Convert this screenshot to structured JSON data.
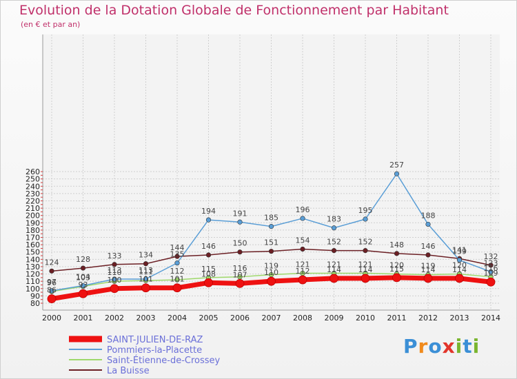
{
  "header": {
    "title": "Evolution de la Dotation Globale de Fonctionnement par Habitant",
    "subtitle": "(en € et par an)"
  },
  "brand": {
    "logo_text": "Proxiti",
    "logo_colors": [
      "#3b8fd6",
      "#f08a1c",
      "#3b8fd6",
      "#e2352b",
      "#7ab52f",
      "#3b8fd6",
      "#7ab52f"
    ]
  },
  "colors": {
    "accent": "#c0306a",
    "legend_text": "#6a6fd8"
  },
  "chart_data": {
    "type": "line",
    "categories": [
      "2000",
      "2001",
      "2002",
      "2003",
      "2004",
      "2005",
      "2006",
      "2007",
      "2008",
      "2009",
      "2010",
      "2011",
      "2012",
      "2013",
      "2014"
    ],
    "ylim": [
      80,
      260
    ],
    "yticks": [
      80,
      90,
      100,
      110,
      120,
      130,
      140,
      150,
      160,
      170,
      180,
      190,
      200,
      210,
      220,
      230,
      240,
      250,
      260
    ],
    "xlabel": "",
    "ylabel": "",
    "grid": true,
    "legend_position": "bottom-left",
    "series": [
      {
        "name": "La Buisse",
        "color": "#6b1f24",
        "values": [
          124,
          128,
          133,
          134,
          144,
          146,
          150,
          151,
          154,
          152,
          152,
          148,
          146,
          141,
          132
        ]
      },
      {
        "name": "Saint-Étienne-de-Crossey",
        "color": "#9ed86a",
        "values": [
          96,
          103,
          110,
          111,
          112,
          115,
          116,
          119,
          121,
          121,
          121,
          120,
          119,
          120,
          116
        ]
      },
      {
        "name": "Pommiers-la-Placette",
        "color": "#5a9ed6",
        "values": [
          97,
          104,
          113,
          113,
          135,
          194,
          191,
          185,
          196,
          183,
          195,
          257,
          188,
          139,
          123
        ]
      },
      {
        "name": "SAINT-JULIEN-DE-RAZ",
        "color": "#ee1111",
        "values": [
          86,
          93,
          100,
          101,
          101,
          108,
          107,
          110,
          112,
          114,
          114,
          115,
          114,
          114,
          109
        ]
      }
    ],
    "legend_order": [
      "SAINT-JULIEN-DE-RAZ",
      "Pommiers-la-Placette",
      "Saint-Étienne-de-Crossey",
      "La Buisse"
    ]
  }
}
